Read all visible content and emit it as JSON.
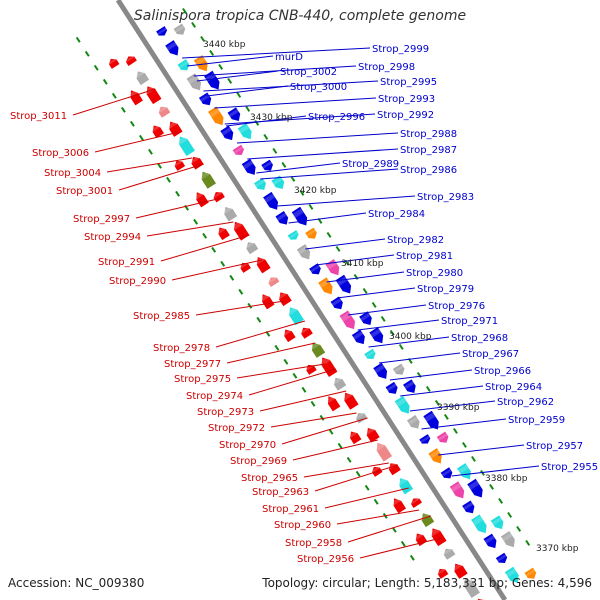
{
  "title": "Salinispora tropica CNB-440, complete genome",
  "footer": {
    "accession_label": "Accession:",
    "accession": "NC_009380",
    "topology_label": "Topology:",
    "topology": "circular",
    "length_label": "Length:",
    "length": "5,183,331 bp",
    "genes_label": "Genes:",
    "genes": "4,596"
  },
  "colors": {
    "backbone": "#888888",
    "tick": "#118811",
    "forward_feature": "#0000dd",
    "reverse_feature": "#ee0000",
    "forward_label": "#0000cc",
    "reverse_label": "#cc0000",
    "cyan": "#22dddd",
    "orange": "#ff8800",
    "olive": "#6a8a20",
    "green": "#44aa22",
    "magenta": "#ee44aa",
    "pink": "#ee8888",
    "gray": "#aaaaaa"
  },
  "scale_labels": [
    "3440 kbp",
    "3430 kbp",
    "3420 kbp",
    "3410 kbp",
    "3400 kbp",
    "3390 kbp",
    "3380 kbp",
    "3370 kbp"
  ],
  "forward_labels": [
    "murD",
    "Strop_2999",
    "Strop_3002",
    "Strop_2998",
    "Strop_3000",
    "Strop_2995",
    "Strop_2993",
    "Strop_2996",
    "Strop_2992",
    "Strop_2988",
    "Strop_2987",
    "Strop_2989",
    "Strop_2986",
    "Strop_2983",
    "Strop_2984",
    "Strop_2982",
    "Strop_2981",
    "Strop_2980",
    "Strop_2979",
    "Strop_2976",
    "Strop_2971",
    "Strop_2968",
    "Strop_2967",
    "Strop_2966",
    "Strop_2964",
    "Strop_2962",
    "Strop_2959",
    "Strop_2957",
    "Strop_2955"
  ],
  "reverse_labels": [
    "Strop_3011",
    "Strop_3006",
    "Strop_3004",
    "Strop_3001",
    "Strop_2997",
    "Strop_2994",
    "Strop_2991",
    "Strop_2990",
    "Strop_2985",
    "Strop_2978",
    "Strop_2977",
    "Strop_2975",
    "Strop_2974",
    "Strop_2973",
    "Strop_2972",
    "Strop_2970",
    "Strop_2969",
    "Strop_2965",
    "Strop_2963",
    "Strop_2961",
    "Strop_2960",
    "Strop_2958",
    "Strop_2956"
  ]
}
